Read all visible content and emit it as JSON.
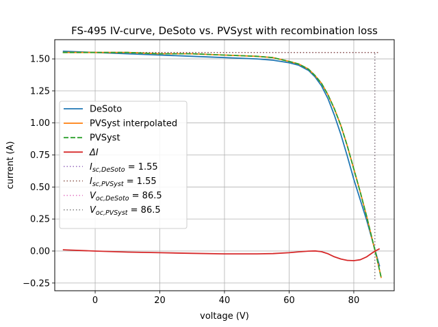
{
  "chart_data": {
    "type": "line",
    "title": "FS-495 IV-curve, DeSoto vs. PVSyst with recombination loss",
    "xlabel": "voltage (V)",
    "ylabel": "current (A)",
    "xlim": [
      -12.5,
      92.5
    ],
    "ylim": [
      -0.31,
      1.65
    ],
    "xticks": [
      0,
      20,
      40,
      60,
      80
    ],
    "yticks": [
      -0.25,
      0.0,
      0.25,
      0.5,
      0.75,
      1.0,
      1.25,
      1.5
    ],
    "xtick_labels": [
      "0",
      "20",
      "40",
      "60",
      "80"
    ],
    "ytick_labels": [
      "−0.25",
      "0.00",
      "0.25",
      "0.50",
      "0.75",
      "1.00",
      "1.25",
      "1.50"
    ],
    "grid": true,
    "legend_position": "center-left",
    "series": [
      {
        "name": "DeSoto",
        "color": "#1f77b4",
        "style": "solid",
        "x": [
          -10,
          0,
          10,
          20,
          30,
          40,
          50,
          55,
          60,
          63,
          66,
          68,
          70,
          72,
          74,
          76,
          78,
          80,
          82,
          84,
          86,
          87,
          88
        ],
        "y": [
          1.56,
          1.55,
          1.54,
          1.53,
          1.52,
          1.51,
          1.5,
          1.49,
          1.47,
          1.45,
          1.41,
          1.36,
          1.29,
          1.19,
          1.06,
          0.91,
          0.74,
          0.56,
          0.4,
          0.24,
          0.06,
          -0.03,
          -0.12
        ]
      },
      {
        "name": "PVSyst interpolated",
        "color": "#ff7f0e",
        "style": "solid",
        "x": [
          -10,
          0,
          10,
          20,
          30,
          40,
          50,
          55,
          60,
          63,
          66,
          68,
          70,
          72,
          74,
          76,
          78,
          80,
          82,
          84,
          86,
          87,
          88.5
        ],
        "y": [
          1.55,
          1.55,
          1.55,
          1.54,
          1.54,
          1.53,
          1.52,
          1.51,
          1.48,
          1.46,
          1.42,
          1.37,
          1.31,
          1.22,
          1.11,
          0.98,
          0.82,
          0.64,
          0.46,
          0.27,
          0.06,
          -0.04,
          -0.21
        ]
      },
      {
        "name": "PVSyst",
        "color": "#2ca02c",
        "style": "dashed",
        "x": [
          -10,
          0,
          10,
          20,
          30,
          40,
          50,
          55,
          60,
          63,
          66,
          68,
          70,
          72,
          74,
          76,
          78,
          80,
          82,
          84,
          86,
          87,
          88.5
        ],
        "y": [
          1.55,
          1.55,
          1.55,
          1.54,
          1.54,
          1.53,
          1.52,
          1.51,
          1.48,
          1.46,
          1.42,
          1.37,
          1.31,
          1.22,
          1.11,
          0.98,
          0.82,
          0.64,
          0.46,
          0.27,
          0.06,
          -0.04,
          -0.21
        ]
      },
      {
        "name": "ΔI",
        "label_math": "Delta I",
        "color": "#d62728",
        "style": "solid",
        "x": [
          -10,
          0,
          10,
          20,
          30,
          40,
          50,
          55,
          60,
          63,
          66,
          68,
          70,
          72,
          74,
          76,
          78,
          80,
          82,
          84,
          86,
          87,
          88
        ],
        "y": [
          0.01,
          0.0,
          -0.008,
          -0.013,
          -0.018,
          -0.022,
          -0.022,
          -0.02,
          -0.013,
          -0.006,
          -0.001,
          0.001,
          -0.005,
          -0.021,
          -0.045,
          -0.062,
          -0.073,
          -0.075,
          -0.068,
          -0.045,
          -0.01,
          0.005,
          0.018
        ]
      },
      {
        "name": "I_sc,DeSoto = 1.55",
        "legend_main": "I",
        "legend_sub": "sc,DeSoto",
        "legend_value": " = 1.55",
        "color": "#9467bd",
        "style": "dotted",
        "x": [
          -10,
          88
        ],
        "y": [
          1.55,
          1.55
        ]
      },
      {
        "name": "I_sc,PVSyst = 1.55",
        "legend_main": "I",
        "legend_sub": "sc,PVSyst",
        "legend_value": " = 1.55",
        "color": "#8c564b",
        "style": "dotted",
        "x": [
          -10,
          88
        ],
        "y": [
          1.55,
          1.55
        ]
      },
      {
        "name": "V_oc,DeSoto = 86.5",
        "legend_main": "V",
        "legend_sub": "oc,DeSoto",
        "legend_value": " = 86.5",
        "color": "#e377c2",
        "style": "dotted",
        "x": [
          86.5,
          86.5
        ],
        "y": [
          -0.22,
          1.55
        ]
      },
      {
        "name": "V_oc,PVSyst = 86.5",
        "legend_main": "V",
        "legend_sub": "oc,PVSyst",
        "legend_value": " = 86.5",
        "color": "#7f7f7f",
        "style": "dotted",
        "x": [
          86.5,
          86.5
        ],
        "y": [
          -0.22,
          1.55
        ]
      }
    ]
  }
}
